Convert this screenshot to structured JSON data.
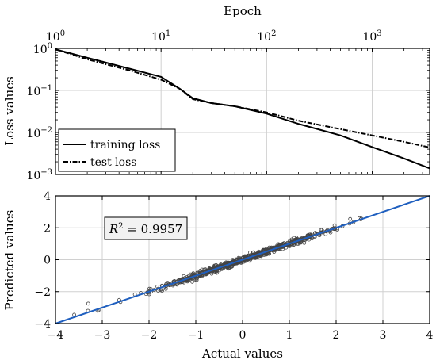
{
  "chart_data": [
    {
      "type": "line",
      "x_title": "Epoch",
      "y_title": "Loss values",
      "x_scale": "log",
      "y_scale": "log",
      "xlim": [
        1,
        3500
      ],
      "ylim": [
        0.001,
        1
      ],
      "x_ticks": [
        {
          "value": 1,
          "base": "10",
          "exp": "0"
        },
        {
          "value": 10,
          "base": "10",
          "exp": "1"
        },
        {
          "value": 100,
          "base": "10",
          "exp": "2"
        },
        {
          "value": 1000,
          "base": "10",
          "exp": "3"
        }
      ],
      "y_ticks": [
        {
          "value": 1,
          "base": "10",
          "exp": "0"
        },
        {
          "value": 0.1,
          "base": "10",
          "exp": "−1"
        },
        {
          "value": 0.01,
          "base": "10",
          "exp": "−2"
        },
        {
          "value": 0.001,
          "base": "10",
          "exp": "−3"
        }
      ],
      "grid": true,
      "legend_position": "bottom-left",
      "series": [
        {
          "name": "training loss",
          "style": "solid",
          "x": [
            1,
            2,
            5,
            10,
            15,
            20,
            30,
            50,
            100,
            200,
            500,
            1000,
            2000,
            3500
          ],
          "y": [
            0.95,
            0.6,
            0.33,
            0.21,
            0.11,
            0.065,
            0.05,
            0.042,
            0.028,
            0.016,
            0.0085,
            0.0045,
            0.0024,
            0.0014
          ]
        },
        {
          "name": "test loss",
          "style": "dashdot",
          "x": [
            1,
            2,
            5,
            10,
            15,
            20,
            30,
            50,
            100,
            200,
            500,
            1000,
            2000,
            3500
          ],
          "y": [
            0.95,
            0.55,
            0.3,
            0.18,
            0.11,
            0.062,
            0.05,
            0.042,
            0.03,
            0.019,
            0.012,
            0.0085,
            0.006,
            0.0044
          ]
        }
      ]
    },
    {
      "type": "scatter",
      "x_title": "Actual values",
      "y_title": "Predicted values",
      "xlim": [
        -4,
        4
      ],
      "ylim": [
        -4,
        4
      ],
      "x_ticks": [
        "−4",
        "−3",
        "−2",
        "−1",
        "0",
        "1",
        "2",
        "3",
        "4"
      ],
      "y_ticks": [
        "−4",
        "−2",
        "0",
        "2",
        "4"
      ],
      "grid": true,
      "annotation": {
        "symbol": "R",
        "sup": "2",
        "text": " = 0.9957",
        "r2": 0.9957
      },
      "reference_line": {
        "from": [
          -4,
          -4
        ],
        "to": [
          4,
          4
        ],
        "color": "#1f5fbf"
      },
      "point_range": [
        -3.6,
        2.55
      ],
      "point_count": 800,
      "outliers": [
        {
          "x": -3.6,
          "y": -3.45
        },
        {
          "x": -3.3,
          "y": -2.75
        },
        {
          "x": -3.1,
          "y": -3.2
        },
        {
          "x": 2.3,
          "y": 2.55
        },
        {
          "x": 2.5,
          "y": 2.6
        }
      ]
    }
  ]
}
